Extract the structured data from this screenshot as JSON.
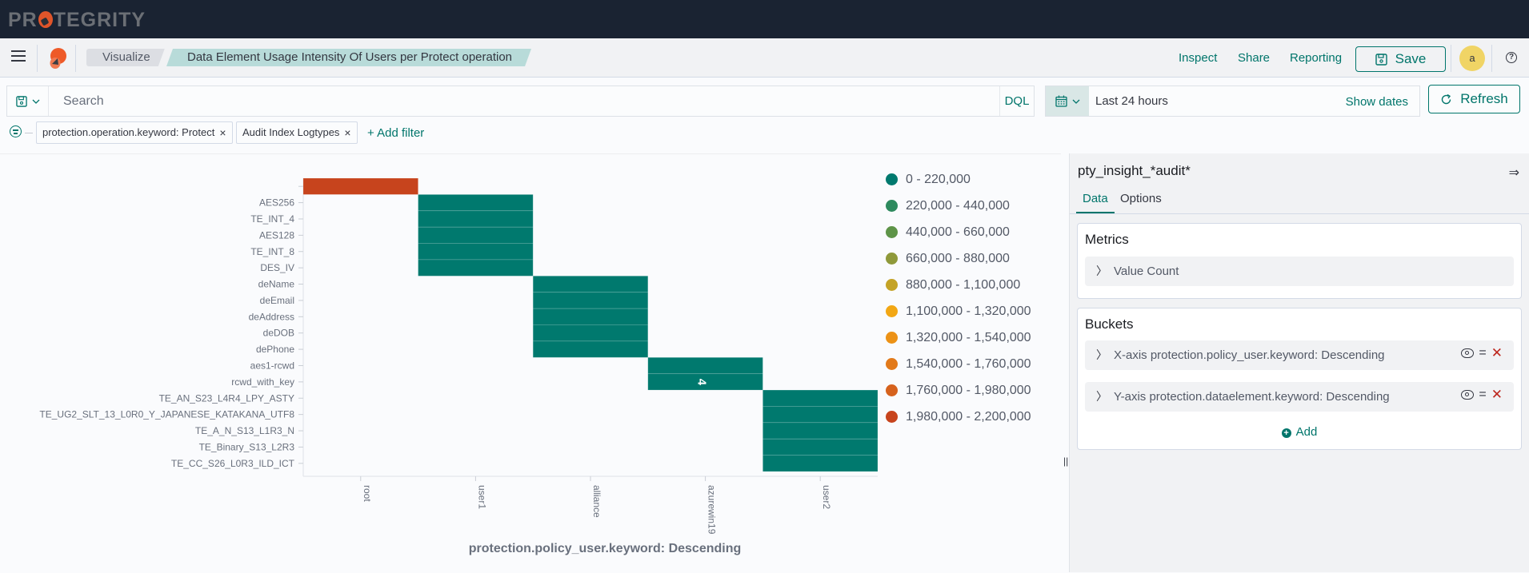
{
  "brand": {
    "name_pre": "PR",
    "name_post": "TEGRITY"
  },
  "nav": {
    "breadcrumbs": [
      "Visualize",
      "Data Element Usage Intensity Of Users per Protect operation"
    ],
    "links": [
      "Inspect",
      "Share",
      "Reporting"
    ],
    "save_label": "Save",
    "avatar_initial": "a",
    "help_glyph": "?"
  },
  "query": {
    "search_placeholder": "Search",
    "search_value": "",
    "language": "DQL",
    "time_range": "Last 24 hours",
    "show_dates_label": "Show dates",
    "refresh_label": "Refresh"
  },
  "filters": {
    "pills": [
      {
        "label": "protection.operation.keyword: Protect"
      },
      {
        "label": "Audit Index Logtypes"
      }
    ],
    "add_label": "+ Add filter"
  },
  "chart_data": {
    "type": "heatmap",
    "title": "Data Element Usage Intensity Of Users per Protect operation",
    "xlabel": "protection.policy_user.keyword: Descending",
    "ylabel": "",
    "x_categories": [
      "root",
      "user1",
      "alliance",
      "azurewin19",
      "user2"
    ],
    "y_categories": [
      "",
      "AES256",
      "TE_INT_4",
      "AES128",
      "TE_INT_8",
      "DES_IV",
      "deName",
      "deEmail",
      "deAddress",
      "deDOB",
      "dePhone",
      "aes1-rcwd",
      "rcwd_with_key",
      "TE_AN_S23_L4R4_LPY_ASTY",
      "TE_UG2_SLT_13_L0R0_Y_JAPANESE_KATAKANA_UTF8",
      "TE_A_N_S13_L1R3_N",
      "TE_Binary_S13_L2R3",
      "TE_CC_S26_L0R3_ILD_ICT"
    ],
    "cells": [
      {
        "x": "root",
        "y": "",
        "value": 2100000,
        "range": "1,980,000 - 2,200,000"
      },
      {
        "x": "user1",
        "y": "AES256",
        "value_range": "0 - 220,000"
      },
      {
        "x": "user1",
        "y": "TE_INT_4",
        "value_range": "0 - 220,000"
      },
      {
        "x": "user1",
        "y": "AES128",
        "value_range": "0 - 220,000"
      },
      {
        "x": "user1",
        "y": "TE_INT_8",
        "value_range": "0 - 220,000"
      },
      {
        "x": "user1",
        "y": "DES_IV",
        "value_range": "0 - 220,000"
      },
      {
        "x": "alliance",
        "y": "deName",
        "value_range": "0 - 220,000"
      },
      {
        "x": "alliance",
        "y": "deEmail",
        "value_range": "0 - 220,000"
      },
      {
        "x": "alliance",
        "y": "deAddress",
        "value_range": "0 - 220,000"
      },
      {
        "x": "alliance",
        "y": "deDOB",
        "value_range": "0 - 220,000"
      },
      {
        "x": "alliance",
        "y": "dePhone",
        "value_range": "0 - 220,000"
      },
      {
        "x": "azurewin19",
        "y": "aes1-rcwd",
        "value_range": "0 - 220,000"
      },
      {
        "x": "azurewin19",
        "y": "rcwd_with_key",
        "value": 4,
        "label": "4"
      },
      {
        "x": "user2",
        "y": "TE_AN_S23_L4R4_LPY_ASTY",
        "value_range": "0 - 220,000"
      },
      {
        "x": "user2",
        "y": "TE_UG2_SLT_13_L0R0_Y_JAPANESE_KATAKANA_UTF8",
        "value_range": "0 - 220,000"
      },
      {
        "x": "user2",
        "y": "TE_A_N_S13_L1R3_N",
        "value_range": "0 - 220,000"
      },
      {
        "x": "user2",
        "y": "TE_Binary_S13_L2R3",
        "value_range": "0 - 220,000"
      },
      {
        "x": "user2",
        "y": "TE_CC_S26_L0R3_ILD_ICT",
        "value_range": "0 - 220,000"
      }
    ],
    "legend": {
      "position": "right",
      "items": [
        {
          "label": "0 - 220,000",
          "color": "#00796e"
        },
        {
          "label": "220,000 - 440,000",
          "color": "#2e8a5e"
        },
        {
          "label": "440,000 - 660,000",
          "color": "#5e9448"
        },
        {
          "label": "660,000 - 880,000",
          "color": "#8f993a"
        },
        {
          "label": "880,000 - 1,100,000",
          "color": "#c4a326"
        },
        {
          "label": "1,100,000 - 1,320,000",
          "color": "#f2a714"
        },
        {
          "label": "1,320,000 - 1,540,000",
          "color": "#ec9216"
        },
        {
          "label": "1,540,000 - 1,760,000",
          "color": "#e27a1a"
        },
        {
          "label": "1,760,000 - 1,980,000",
          "color": "#d6621d"
        },
        {
          "label": "1,980,000 - 2,200,000",
          "color": "#c7441d"
        }
      ]
    }
  },
  "sidebar": {
    "index_pattern": "pty_insight_*audit*",
    "tabs": [
      "Data",
      "Options"
    ],
    "metrics": {
      "title": "Metrics",
      "items": [
        "Value Count"
      ]
    },
    "buckets": {
      "title": "Buckets",
      "items": [
        "X-axis protection.policy_user.keyword: Descending",
        "Y-axis protection.dataelement.keyword: Descending"
      ],
      "add_label": "Add"
    }
  },
  "colors": {
    "accent": "#00756b",
    "topbar": "#1a2332",
    "danger": "#bd271e"
  }
}
